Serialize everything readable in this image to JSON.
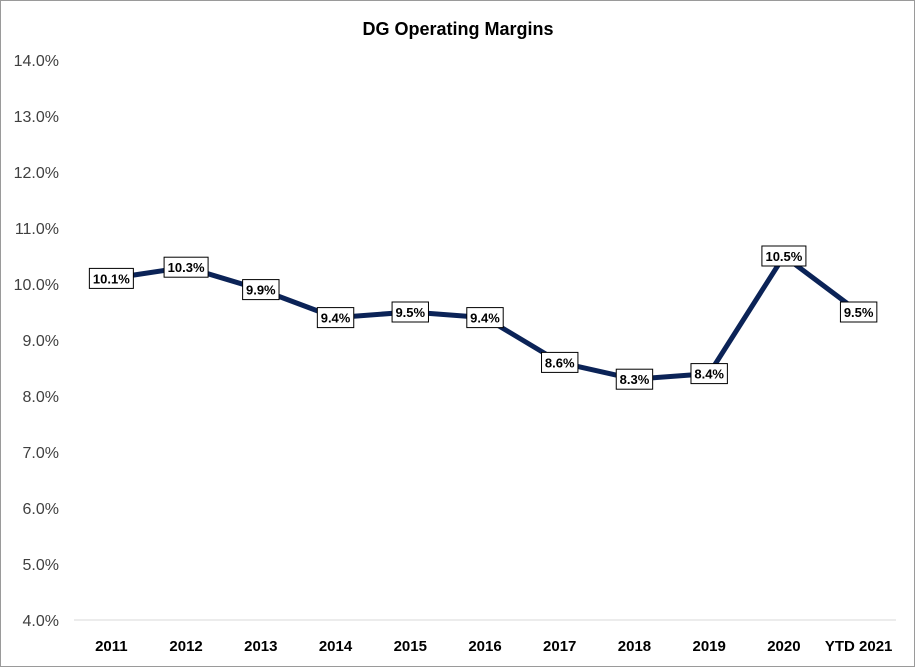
{
  "chart_data": {
    "type": "line",
    "title": "DG Operating Margins",
    "xlabel": "",
    "ylabel": "",
    "categories": [
      "2011",
      "2012",
      "2013",
      "2014",
      "2015",
      "2016",
      "2017",
      "2018",
      "2019",
      "2020",
      "YTD 2021"
    ],
    "values": [
      10.1,
      10.3,
      9.9,
      9.4,
      9.5,
      9.4,
      8.6,
      8.3,
      8.4,
      10.5,
      9.5
    ],
    "data_labels": [
      "10.1%",
      "10.3%",
      "9.9%",
      "9.4%",
      "9.5%",
      "9.4%",
      "8.6%",
      "8.3%",
      "8.4%",
      "10.5%",
      "9.5%"
    ],
    "ylim": [
      4.0,
      14.0
    ],
    "yticks": [
      4.0,
      5.0,
      6.0,
      7.0,
      8.0,
      9.0,
      10.0,
      11.0,
      12.0,
      13.0,
      14.0
    ],
    "ytick_labels": [
      "4.0%",
      "5.0%",
      "6.0%",
      "7.0%",
      "8.0%",
      "9.0%",
      "10.0%",
      "11.0%",
      "12.0%",
      "13.0%",
      "14.0%"
    ],
    "grid": false,
    "legend": "none",
    "line_color": "#0b2357"
  }
}
